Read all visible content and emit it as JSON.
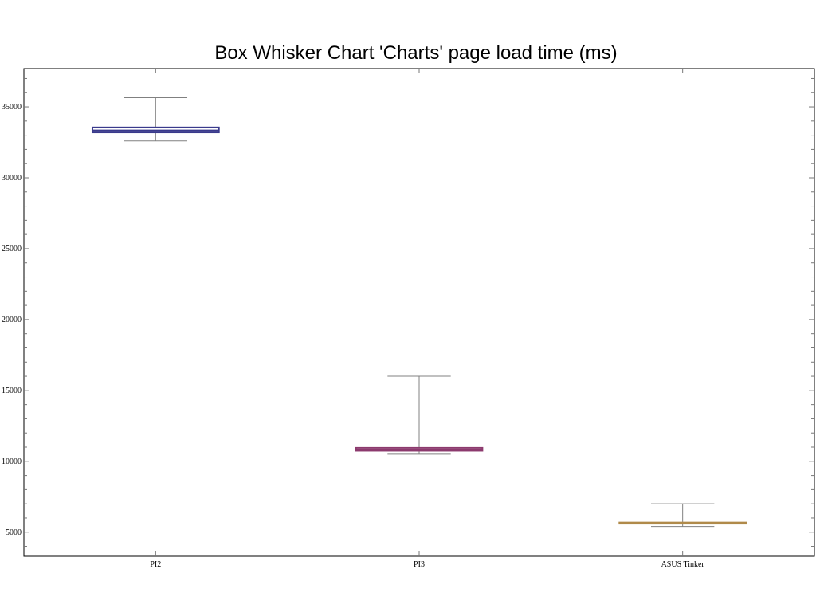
{
  "chart_data": {
    "type": "box",
    "title": "Box Whisker Chart 'Charts' page load time (ms)",
    "xlabel": "",
    "ylabel": "",
    "categories": [
      "PI2",
      "PI3",
      "ASUS Tinker"
    ],
    "ylim": [
      3300,
      37700
    ],
    "yticks": [
      5000,
      10000,
      15000,
      20000,
      25000,
      30000,
      35000
    ],
    "ytick_labels": [
      "5000",
      "10000",
      "15000",
      "20000",
      "25000",
      "30000",
      "35000"
    ],
    "grid": false,
    "legend": "none",
    "boxes": [
      {
        "category": "PI2",
        "min": 32600,
        "q1": 33200,
        "median": 33350,
        "q3": 33550,
        "max": 35650,
        "color": "#3a3a8c"
      },
      {
        "category": "PI3",
        "min": 10500,
        "q1": 10750,
        "median": 10830,
        "q3": 10950,
        "max": 16000,
        "color": "#8c3a6e"
      },
      {
        "category": "ASUS Tinker",
        "min": 5400,
        "q1": 5600,
        "median": 5640,
        "q3": 5680,
        "max": 7000,
        "color": "#b08a4a"
      }
    ]
  }
}
